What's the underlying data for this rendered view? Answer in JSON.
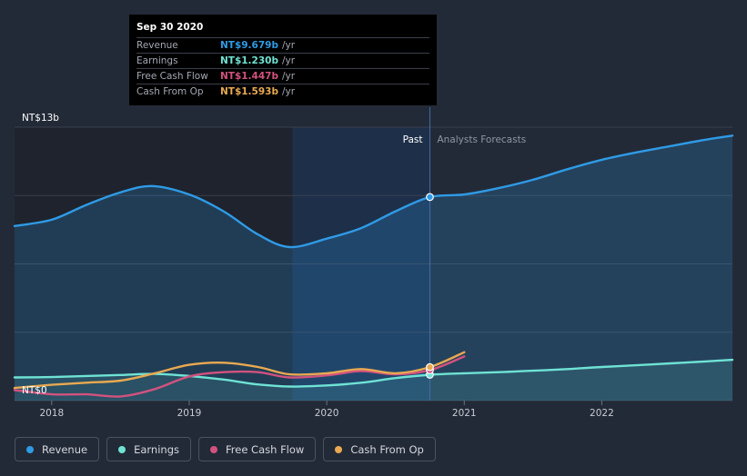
{
  "tooltip": {
    "date": "Sep 30 2020",
    "rows": [
      {
        "label": "Revenue",
        "value": "NT$9.679b",
        "unit": "/yr",
        "color": "#2f9be6"
      },
      {
        "label": "Earnings",
        "value": "NT$1.230b",
        "unit": "/yr",
        "color": "#6fe3d4"
      },
      {
        "label": "Free Cash Flow",
        "value": "NT$1.447b",
        "unit": "/yr",
        "color": "#d2527f"
      },
      {
        "label": "Cash From Op",
        "value": "NT$1.593b",
        "unit": "/yr",
        "color": "#e9a951"
      }
    ]
  },
  "legend": [
    {
      "label": "Revenue",
      "color": "#2f9be6"
    },
    {
      "label": "Earnings",
      "color": "#6fe3d4"
    },
    {
      "label": "Free Cash Flow",
      "color": "#d2527f"
    },
    {
      "label": "Cash From Op",
      "color": "#e9a951"
    }
  ],
  "chart_data": {
    "type": "area",
    "title": "",
    "xlabel": "",
    "ylabel": "",
    "ylim": [
      0,
      13
    ],
    "y_unit": "NT$ billion",
    "ytick_labels": [
      "NT$0",
      "NT$13b"
    ],
    "x_ticks": [
      2018,
      2019,
      2020,
      2021,
      2022
    ],
    "xlim": [
      2017.73,
      2022.95
    ],
    "past_label": "Past",
    "forecast_label": "Analysts Forecasts",
    "divider_x": 2020.75,
    "highlight_range": [
      2019.75,
      2020.75
    ],
    "series": [
      {
        "name": "Revenue",
        "color": "#2f9be6",
        "fill": true,
        "x": [
          2017.73,
          2018.0,
          2018.25,
          2018.5,
          2018.73,
          2019.0,
          2019.25,
          2019.5,
          2019.73,
          2020.0,
          2020.25,
          2020.5,
          2020.75,
          2021.0,
          2021.25,
          2021.5,
          2021.75,
          2022.0,
          2022.25,
          2022.5,
          2022.75,
          2022.95
        ],
        "values": [
          8.3,
          8.6,
          9.3,
          9.9,
          10.2,
          9.8,
          9.0,
          7.9,
          7.3,
          7.7,
          8.2,
          9.0,
          9.679,
          9.8,
          10.1,
          10.5,
          11.0,
          11.45,
          11.8,
          12.1,
          12.4,
          12.6
        ]
      },
      {
        "name": "Earnings",
        "color": "#6fe3d4",
        "fill": true,
        "x": [
          2017.73,
          2018.0,
          2018.25,
          2018.5,
          2018.75,
          2019.0,
          2019.25,
          2019.5,
          2019.73,
          2020.0,
          2020.25,
          2020.5,
          2020.75,
          2021.0,
          2021.25,
          2021.5,
          2021.75,
          2022.0,
          2022.25,
          2022.5,
          2022.75,
          2022.95
        ],
        "values": [
          1.1,
          1.12,
          1.17,
          1.22,
          1.27,
          1.17,
          1.0,
          0.77,
          0.67,
          0.72,
          0.85,
          1.07,
          1.23,
          1.3,
          1.35,
          1.42,
          1.5,
          1.6,
          1.68,
          1.77,
          1.86,
          1.94
        ]
      },
      {
        "name": "Free Cash Flow",
        "color": "#d2527f",
        "fill": false,
        "x": [
          2017.73,
          2018.0,
          2018.25,
          2018.5,
          2018.75,
          2019.0,
          2019.25,
          2019.5,
          2019.73,
          2020.0,
          2020.25,
          2020.5,
          2020.75,
          2021.0
        ],
        "values": [
          0.5,
          0.3,
          0.3,
          0.2,
          0.55,
          1.15,
          1.35,
          1.35,
          1.1,
          1.2,
          1.4,
          1.25,
          1.447,
          2.1
        ]
      },
      {
        "name": "Cash From Op",
        "color": "#e9a951",
        "fill": false,
        "x": [
          2017.73,
          2018.0,
          2018.25,
          2018.5,
          2018.75,
          2019.0,
          2019.25,
          2019.5,
          2019.73,
          2020.0,
          2020.25,
          2020.5,
          2020.75,
          2021.0
        ],
        "values": [
          0.6,
          0.75,
          0.85,
          0.95,
          1.3,
          1.7,
          1.8,
          1.6,
          1.25,
          1.3,
          1.5,
          1.3,
          1.593,
          2.3
        ]
      }
    ]
  }
}
